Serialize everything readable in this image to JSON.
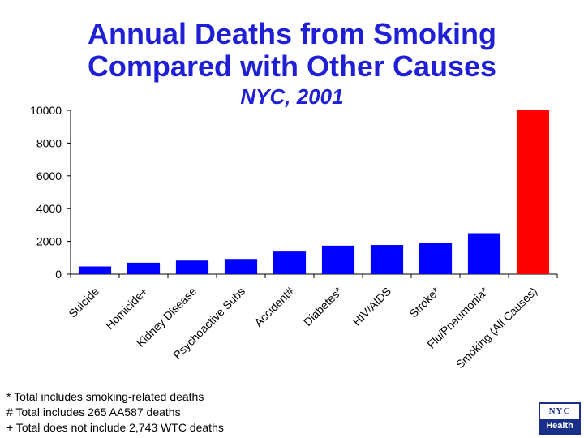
{
  "header": {
    "title_line1": "Annual Deaths from Smoking",
    "title_line2": "Compared with Other Causes",
    "subtitle": "NYC, 2001"
  },
  "chart_data": {
    "type": "bar",
    "categories": [
      "Suicide",
      "Homicide+",
      "Kidney Disease",
      "Psychoactive Subs",
      "Accident#",
      "Diabetes*",
      "HIV/AIDS",
      "Stroke*",
      "Flu/Pneumonia*",
      "Smoking (All Causes)"
    ],
    "values": [
      470,
      700,
      830,
      930,
      1380,
      1740,
      1780,
      1910,
      2500,
      10000
    ],
    "colors": [
      "#0000ff",
      "#0000ff",
      "#0000ff",
      "#0000ff",
      "#0000ff",
      "#0000ff",
      "#0000ff",
      "#0000ff",
      "#0000ff",
      "#ff0000"
    ],
    "yticks": [
      0,
      2000,
      4000,
      6000,
      8000,
      10000
    ],
    "ylim": [
      0,
      10000
    ],
    "grid": false,
    "legend": "none"
  },
  "footnotes": [
    "* Total includes smoking-related deaths",
    "# Total includes 265 AA587 deaths",
    "+ Total does not include 2,743 WTC deaths"
  ],
  "logo": {
    "top": "NYC",
    "bottom": "Health"
  }
}
